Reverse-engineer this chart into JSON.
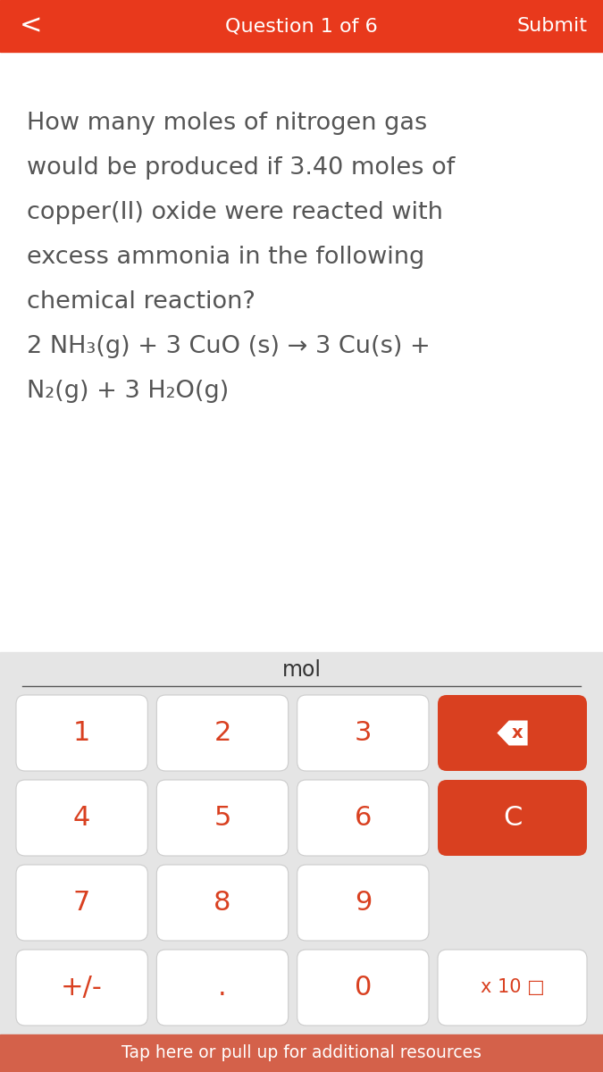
{
  "header_bg": "#E8391C",
  "header_text_color": "#FFFFFF",
  "header_title": "Question 1 of 6",
  "header_submit": "Submit",
  "header_back": "<",
  "body_bg": "#FFFFFF",
  "question_text_color": "#555555",
  "question_lines": [
    "How many moles of nitrogen gas",
    "would be produced if 3.40 moles of",
    "copper(II) oxide were reacted with",
    "excess ammonia in the following",
    "chemical reaction?",
    "2 NH₃(g) + 3 CuO (s) → 3 Cu(s) +",
    "N₂(g) + 3 H₂O(g)"
  ],
  "question_fontsize": 19.5,
  "calc_bg": "#E5E5E5",
  "mol_label": "mol",
  "mol_fontsize": 17,
  "button_labels": [
    [
      "1",
      "2",
      "3"
    ],
    [
      "4",
      "5",
      "6"
    ],
    [
      "7",
      "8",
      "9"
    ],
    [
      "+/-",
      ".",
      "0"
    ]
  ],
  "btn_text_color": "#D94020",
  "btn_bg": "#FFFFFF",
  "btn_fontsize": 22,
  "red_btn_bg": "#D94020",
  "red_btn_text": "#FFFFFF",
  "clear_label": "C",
  "x10_label": "x 10 □",
  "footer_bg": "#D4614A",
  "footer_text": "Tap here or pull up for additional resources",
  "footer_text_color": "#FFFFFF",
  "footer_fontsize": 13.5
}
